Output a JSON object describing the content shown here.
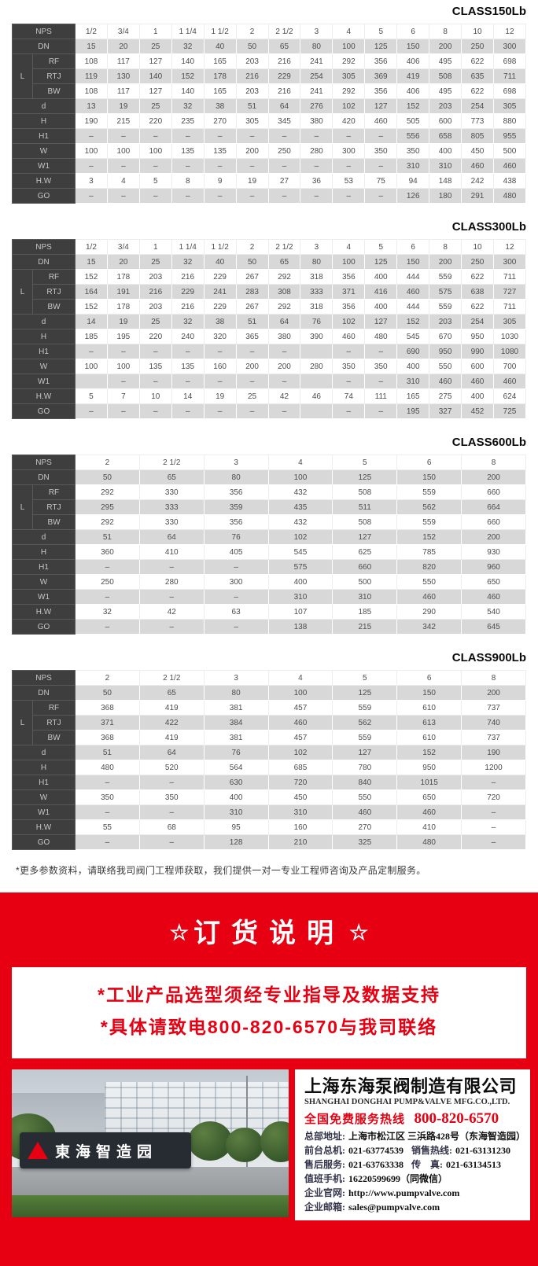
{
  "colors": {
    "accent_red": "#e60012",
    "table_header_dark": "#3e3e3e",
    "row_gray": "#d8d8d8"
  },
  "tables": [
    {
      "title": "CLASS150Lb",
      "nps_label": "NPS",
      "l_label": "L",
      "nps": [
        "1/2",
        "3/4",
        "1",
        "1 1/4",
        "1 1/2",
        "2",
        "2 1/2",
        "3",
        "4",
        "5",
        "6",
        "8",
        "10",
        "12"
      ],
      "dn": {
        "label": "DN",
        "values": [
          "15",
          "20",
          "25",
          "32",
          "40",
          "50",
          "65",
          "80",
          "100",
          "125",
          "150",
          "200",
          "250",
          "300"
        ]
      },
      "l_rows": [
        {
          "label": "RF",
          "values": [
            "108",
            "117",
            "127",
            "140",
            "165",
            "203",
            "216",
            "241",
            "292",
            "356",
            "406",
            "495",
            "622",
            "698"
          ]
        },
        {
          "label": "RTJ",
          "values": [
            "119",
            "130",
            "140",
            "152",
            "178",
            "216",
            "229",
            "254",
            "305",
            "369",
            "419",
            "508",
            "635",
            "711"
          ]
        },
        {
          "label": "BW",
          "values": [
            "108",
            "117",
            "127",
            "140",
            "165",
            "203",
            "216",
            "241",
            "292",
            "356",
            "406",
            "495",
            "622",
            "698"
          ]
        }
      ],
      "dim_rows": [
        {
          "label": "d",
          "values": [
            "13",
            "19",
            "25",
            "32",
            "38",
            "51",
            "64",
            "276",
            "102",
            "127",
            "152",
            "203",
            "254",
            "305"
          ]
        },
        {
          "label": "H",
          "values": [
            "190",
            "215",
            "220",
            "235",
            "270",
            "305",
            "345",
            "380",
            "420",
            "460",
            "505",
            "600",
            "773",
            "880"
          ]
        },
        {
          "label": "H1",
          "values": [
            "–",
            "–",
            "–",
            "–",
            "–",
            "–",
            "–",
            "–",
            "–",
            "–",
            "556",
            "658",
            "805",
            "955"
          ]
        },
        {
          "label": "W",
          "values": [
            "100",
            "100",
            "100",
            "135",
            "135",
            "200",
            "250",
            "280",
            "300",
            "350",
            "350",
            "400",
            "450",
            "500"
          ]
        },
        {
          "label": "W1",
          "values": [
            "–",
            "–",
            "–",
            "–",
            "–",
            "–",
            "–",
            "–",
            "–",
            "–",
            "310",
            "310",
            "460",
            "460"
          ]
        },
        {
          "label": "H.W",
          "values": [
            "3",
            "4",
            "5",
            "8",
            "9",
            "19",
            "27",
            "36",
            "53",
            "75",
            "94",
            "148",
            "242",
            "438"
          ]
        },
        {
          "label": "GO",
          "values": [
            "–",
            "–",
            "–",
            "–",
            "–",
            "–",
            "–",
            "–",
            "–",
            "–",
            "126",
            "180",
            "291",
            "480"
          ]
        }
      ]
    },
    {
      "title": "CLASS300Lb",
      "nps_label": "NPS",
      "l_label": "L",
      "nps": [
        "1/2",
        "3/4",
        "1",
        "1 1/4",
        "1 1/2",
        "2",
        "2 1/2",
        "3",
        "4",
        "5",
        "6",
        "8",
        "10",
        "12"
      ],
      "dn": {
        "label": "DN",
        "values": [
          "15",
          "20",
          "25",
          "32",
          "40",
          "50",
          "65",
          "80",
          "100",
          "125",
          "150",
          "200",
          "250",
          "300"
        ]
      },
      "l_rows": [
        {
          "label": "RF",
          "values": [
            "152",
            "178",
            "203",
            "216",
            "229",
            "267",
            "292",
            "318",
            "356",
            "400",
            "444",
            "559",
            "622",
            "711"
          ]
        },
        {
          "label": "RTJ",
          "values": [
            "164",
            "191",
            "216",
            "229",
            "241",
            "283",
            "308",
            "333",
            "371",
            "416",
            "460",
            "575",
            "638",
            "727"
          ]
        },
        {
          "label": "BW",
          "values": [
            "152",
            "178",
            "203",
            "216",
            "229",
            "267",
            "292",
            "318",
            "356",
            "400",
            "444",
            "559",
            "622",
            "711"
          ]
        }
      ],
      "dim_rows": [
        {
          "label": "d",
          "values": [
            "14",
            "19",
            "25",
            "32",
            "38",
            "51",
            "64",
            "76",
            "102",
            "127",
            "152",
            "203",
            "254",
            "305"
          ]
        },
        {
          "label": "H",
          "values": [
            "185",
            "195",
            "220",
            "240",
            "320",
            "365",
            "380",
            "390",
            "460",
            "480",
            "545",
            "670",
            "950",
            "1030"
          ]
        },
        {
          "label": "H1",
          "values": [
            "–",
            "–",
            "–",
            "–",
            "–",
            "–",
            "–",
            "",
            "–",
            "–",
            "690",
            "950",
            "990",
            "1080"
          ]
        },
        {
          "label": "W",
          "values": [
            "100",
            "100",
            "135",
            "135",
            "160",
            "200",
            "200",
            "280",
            "350",
            "350",
            "400",
            "550",
            "600",
            "700"
          ]
        },
        {
          "label": "W1",
          "values": [
            "",
            "–",
            "–",
            "–",
            "–",
            "–",
            "–",
            "",
            "–",
            "–",
            "310",
            "460",
            "460",
            "460"
          ]
        },
        {
          "label": "H.W",
          "values": [
            "5",
            "7",
            "10",
            "14",
            "19",
            "25",
            "42",
            "46",
            "74",
            "111",
            "165",
            "275",
            "400",
            "624"
          ]
        },
        {
          "label": "GO",
          "values": [
            "–",
            "–",
            "–",
            "–",
            "–",
            "–",
            "–",
            "",
            "–",
            "–",
            "195",
            "327",
            "452",
            "725"
          ]
        }
      ]
    },
    {
      "title": "CLASS600Lb",
      "nps_label": "NPS",
      "l_label": "L",
      "nps": [
        "2",
        "2 1/2",
        "3",
        "4",
        "5",
        "6",
        "8"
      ],
      "dn": {
        "label": "DN",
        "values": [
          "50",
          "65",
          "80",
          "100",
          "125",
          "150",
          "200"
        ]
      },
      "l_rows": [
        {
          "label": "RF",
          "values": [
            "292",
            "330",
            "356",
            "432",
            "508",
            "559",
            "660"
          ]
        },
        {
          "label": "RTJ",
          "values": [
            "295",
            "333",
            "359",
            "435",
            "511",
            "562",
            "664"
          ]
        },
        {
          "label": "BW",
          "values": [
            "292",
            "330",
            "356",
            "432",
            "508",
            "559",
            "660"
          ]
        }
      ],
      "dim_rows": [
        {
          "label": "d",
          "values": [
            "51",
            "64",
            "76",
            "102",
            "127",
            "152",
            "200"
          ]
        },
        {
          "label": "H",
          "values": [
            "360",
            "410",
            "405",
            "545",
            "625",
            "785",
            "930"
          ]
        },
        {
          "label": "H1",
          "values": [
            "–",
            "–",
            "–",
            "575",
            "660",
            "820",
            "960"
          ]
        },
        {
          "label": "W",
          "values": [
            "250",
            "280",
            "300",
            "400",
            "500",
            "550",
            "650"
          ]
        },
        {
          "label": "W1",
          "values": [
            "–",
            "–",
            "–",
            "310",
            "310",
            "460",
            "460"
          ]
        },
        {
          "label": "H.W",
          "values": [
            "32",
            "42",
            "63",
            "107",
            "185",
            "290",
            "540"
          ]
        },
        {
          "label": "GO",
          "values": [
            "–",
            "–",
            "–",
            "138",
            "215",
            "342",
            "645"
          ]
        }
      ]
    },
    {
      "title": "CLASS900Lb",
      "nps_label": "NPS",
      "l_label": "L",
      "nps": [
        "2",
        "2 1/2",
        "3",
        "4",
        "5",
        "6",
        "8"
      ],
      "dn": {
        "label": "DN",
        "values": [
          "50",
          "65",
          "80",
          "100",
          "125",
          "150",
          "200"
        ]
      },
      "l_rows": [
        {
          "label": "RF",
          "values": [
            "368",
            "419",
            "381",
            "457",
            "559",
            "610",
            "737"
          ]
        },
        {
          "label": "RTJ",
          "values": [
            "371",
            "422",
            "384",
            "460",
            "562",
            "613",
            "740"
          ]
        },
        {
          "label": "BW",
          "values": [
            "368",
            "419",
            "381",
            "457",
            "559",
            "610",
            "737"
          ]
        }
      ],
      "dim_rows": [
        {
          "label": "d",
          "values": [
            "51",
            "64",
            "76",
            "102",
            "127",
            "152",
            "190"
          ]
        },
        {
          "label": "H",
          "values": [
            "480",
            "520",
            "564",
            "685",
            "780",
            "950",
            "1200"
          ]
        },
        {
          "label": "H1",
          "values": [
            "–",
            "–",
            "630",
            "720",
            "840",
            "1015",
            "–"
          ]
        },
        {
          "label": "W",
          "values": [
            "350",
            "350",
            "400",
            "450",
            "550",
            "650",
            "720"
          ]
        },
        {
          "label": "W1",
          "values": [
            "–",
            "–",
            "310",
            "310",
            "460",
            "460",
            "–"
          ]
        },
        {
          "label": "H.W",
          "values": [
            "55",
            "68",
            "95",
            "160",
            "270",
            "410",
            "–"
          ]
        },
        {
          "label": "GO",
          "values": [
            "–",
            "–",
            "128",
            "210",
            "325",
            "480",
            "–"
          ]
        }
      ]
    }
  ],
  "footnote": "*更多参数资料，请联络我司阀门工程师获取，我们提供一对一专业工程师咨询及产品定制服务。",
  "red_section": {
    "star_left": "☆",
    "star_right": "☆",
    "title": "订货说明",
    "notice_lines": [
      "*工业产品选型须经专业指导及数据支持",
      "*具体请致电800-820-6570与我司联络"
    ]
  },
  "photo": {
    "sign_text": "東海智造园"
  },
  "company": {
    "name_cn": "上海东海泵阀制造有限公司",
    "name_en": "SHANGHAI DONGHAI PUMP&VALVE MFG.CO.,LTD.",
    "hotline_label": "全国免费服务热线",
    "hotline_number": "800-820-6570",
    "contacts": [
      {
        "label": "总部地址:",
        "value": "上海市松江区 三浜路428号（东海智造园）"
      },
      {
        "label": "前台总机:",
        "value": "021-63774539",
        "label2": "销售热线:",
        "value2": "021-63131230"
      },
      {
        "label": "售后服务:",
        "value": "021-63763338",
        "label2": "传　真:",
        "value2": "021-63134513"
      },
      {
        "label": "值班手机:",
        "value": "16220599699（同微信）"
      },
      {
        "label": "企业官网:",
        "value": "http://www.pumpvalve.com",
        "link": true
      },
      {
        "label": "企业邮箱:",
        "value": "sales@pumpvalve.com",
        "link": true
      }
    ]
  }
}
